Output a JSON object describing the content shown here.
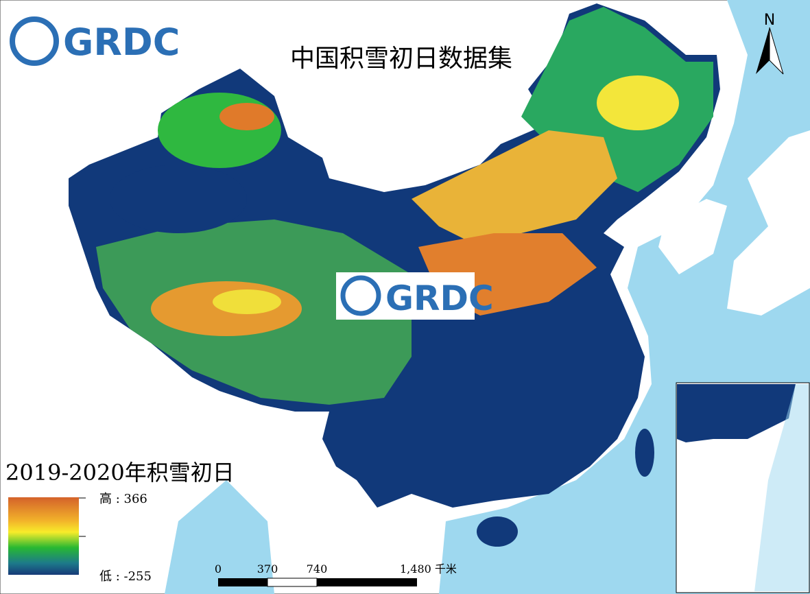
{
  "header": {
    "title": "中国积雪初日数据集",
    "logo": "GRDC"
  },
  "watermark": {
    "logo": "GRDC"
  },
  "north_arrow": {
    "label": "N"
  },
  "legend": {
    "title": "2019-2020年积雪初日",
    "high": "高 : 366",
    "low": "低 : -255"
  },
  "scale_bar": {
    "labels": [
      "0",
      "370",
      "740",
      "1,480 千米"
    ]
  }
}
